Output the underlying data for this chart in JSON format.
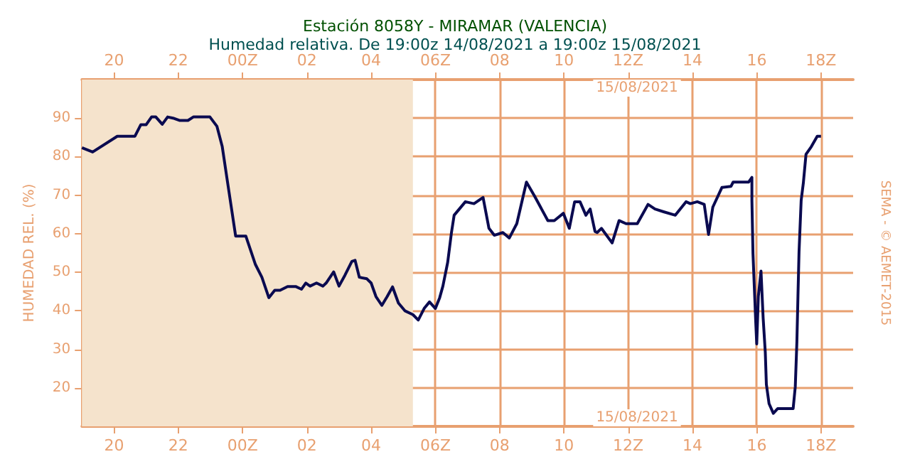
{
  "chart_data": {
    "type": "line",
    "title": "Estación 8058Y - MIRAMAR (VALENCIA)",
    "subtitle": "Humedad relativa. De 19:00z 14/08/2021 a 19:00z 15/08/2021",
    "ylabel": "HUMEDAD REL. (%)",
    "x": [
      "2021-08-14T19:00",
      "2021-08-14T19:20",
      "2021-08-14T20:06",
      "2021-08-14T20:39",
      "2021-08-14T20:50",
      "2021-08-14T21:00",
      "2021-08-14T21:10",
      "2021-08-14T21:18",
      "2021-08-14T21:30",
      "2021-08-14T21:40",
      "2021-08-14T21:50",
      "2021-08-14T22:02",
      "2021-08-14T22:18",
      "2021-08-14T22:28",
      "2021-08-14T22:59",
      "2021-08-14T23:12",
      "2021-08-14T23:22",
      "2021-08-14T23:34",
      "2021-08-14T23:47",
      "2021-08-15T00:06",
      "2021-08-15T00:24",
      "2021-08-15T00:36",
      "2021-08-15T00:49",
      "2021-08-15T01:00",
      "2021-08-15T01:10",
      "2021-08-15T01:24",
      "2021-08-15T01:39",
      "2021-08-15T01:50",
      "2021-08-15T01:58",
      "2021-08-15T02:06",
      "2021-08-15T02:18",
      "2021-08-15T02:30",
      "2021-08-15T02:36",
      "2021-08-15T02:50",
      "2021-08-15T03:00",
      "2021-08-15T03:11",
      "2021-08-15T03:24",
      "2021-08-15T03:30",
      "2021-08-15T03:38",
      "2021-08-15T03:52",
      "2021-08-15T04:00",
      "2021-08-15T04:09",
      "2021-08-15T04:20",
      "2021-08-15T04:30",
      "2021-08-15T04:40",
      "2021-08-15T04:51",
      "2021-08-15T05:03",
      "2021-08-15T05:18",
      "2021-08-15T05:28",
      "2021-08-15T05:39",
      "2021-08-15T05:49",
      "2021-08-15T06:00",
      "2021-08-15T06:08",
      "2021-08-15T06:14",
      "2021-08-15T06:23",
      "2021-08-15T06:30",
      "2021-08-15T06:35",
      "2021-08-15T06:56",
      "2021-08-15T07:12",
      "2021-08-15T07:29",
      "2021-08-15T07:40",
      "2021-08-15T07:50",
      "2021-08-15T08:06",
      "2021-08-15T08:18",
      "2021-08-15T08:32",
      "2021-08-15T08:50",
      "2021-08-15T09:05",
      "2021-08-15T09:30",
      "2021-08-15T09:42",
      "2021-08-15T09:59",
      "2021-08-15T10:10",
      "2021-08-15T10:20",
      "2021-08-15T10:30",
      "2021-08-15T10:41",
      "2021-08-15T10:49",
      "2021-08-15T10:58",
      "2021-08-15T11:02",
      "2021-08-15T11:10",
      "2021-08-15T11:30",
      "2021-08-15T11:43",
      "2021-08-15T11:56",
      "2021-08-15T12:17",
      "2021-08-15T12:37",
      "2021-08-15T12:50",
      "2021-08-15T13:06",
      "2021-08-15T13:28",
      "2021-08-15T13:48",
      "2021-08-15T13:56",
      "2021-08-15T14:09",
      "2021-08-15T14:22",
      "2021-08-15T14:30",
      "2021-08-15T14:38",
      "2021-08-15T14:55",
      "2021-08-15T15:12",
      "2021-08-15T15:16",
      "2021-08-15T15:45",
      "2021-08-15T15:51",
      "2021-08-15T15:51",
      "2021-08-15T15:53",
      "2021-08-15T15:58",
      "2021-08-15T16:00",
      "2021-08-15T16:03",
      "2021-08-15T16:08",
      "2021-08-15T16:12",
      "2021-08-15T16:16",
      "2021-08-15T16:18",
      "2021-08-15T16:23",
      "2021-08-15T16:31",
      "2021-08-15T16:39",
      "2021-08-15T17:08",
      "2021-08-15T17:12",
      "2021-08-15T17:15",
      "2021-08-15T17:17",
      "2021-08-15T17:19",
      "2021-08-15T17:23",
      "2021-08-15T17:27",
      "2021-08-15T17:32",
      "2021-08-15T17:42",
      "2021-08-15T17:53",
      "2021-08-15T18:00"
    ],
    "series": [
      {
        "color": "#0a0a50",
        "values": [
          82.3,
          81.2,
          85.3,
          85.3,
          88.3,
          88.3,
          90.3,
          90.3,
          88.4,
          90.3,
          90,
          89.4,
          89.4,
          90.3,
          90.3,
          87.9,
          82.6,
          71.4,
          59.4,
          59.4,
          52,
          48.7,
          43.4,
          45.3,
          45.3,
          46.3,
          46.3,
          45.6,
          47.2,
          46.4,
          47.2,
          46.4,
          47.2,
          50.1,
          46.4,
          49.2,
          52.8,
          53.1,
          48.7,
          48.3,
          47.2,
          43.7,
          41.4,
          43.7,
          46.2,
          42,
          40,
          39,
          37.6,
          40.6,
          42.3,
          40.6,
          43.4,
          46.4,
          52.6,
          60.3,
          64.8,
          68.3,
          67.8,
          69.4,
          61.4,
          59.6,
          60.3,
          58.9,
          62.6,
          73.4,
          69.8,
          63.4,
          63.4,
          65.3,
          61.4,
          68.3,
          68.3,
          64.8,
          66.4,
          60.6,
          60.3,
          61.4,
          57.6,
          63.4,
          62.6,
          62.6,
          67.6,
          66.4,
          65.7,
          64.8,
          68.3,
          67.8,
          68.3,
          67.6,
          59.8,
          66.9,
          72,
          72.3,
          73.4,
          73.4,
          74.6,
          68.7,
          54.8,
          37.6,
          31.4,
          43.7,
          50.3,
          38.1,
          29.2,
          20.9,
          15.9,
          13.4,
          14.6,
          14.6,
          20.3,
          32,
          43.9,
          55.3,
          68.7,
          73.1,
          80.6,
          82.6,
          85.3,
          85.3
        ]
      }
    ],
    "xlim": [
      "2021-08-14T19:00",
      "2021-08-15T19:00"
    ],
    "xticks": [
      {
        "value": "2021-08-14T20:00",
        "label": "20"
      },
      {
        "value": "2021-08-14T22:00",
        "label": "22"
      },
      {
        "value": "2021-08-15T00:00",
        "label": "00Z"
      },
      {
        "value": "2021-08-15T02:00",
        "label": "02"
      },
      {
        "value": "2021-08-15T04:00",
        "label": "04"
      },
      {
        "value": "2021-08-15T06:00",
        "label": "06Z"
      },
      {
        "value": "2021-08-15T08:00",
        "label": "08"
      },
      {
        "value": "2021-08-15T10:00",
        "label": "10"
      },
      {
        "value": "2021-08-15T12:00",
        "label": "12Z"
      },
      {
        "value": "2021-08-15T14:00",
        "label": "14"
      },
      {
        "value": "2021-08-15T16:00",
        "label": "16"
      },
      {
        "value": "2021-08-15T18:00",
        "label": "18Z"
      }
    ],
    "x2lim": [
      "2021-08-14T19:00",
      "2021-08-15T19:00"
    ],
    "x2ticks": [
      {
        "value": "2021-08-14T20:00",
        "label": "20"
      },
      {
        "value": "2021-08-14T22:00",
        "label": "22"
      },
      {
        "value": "2021-08-15T00:00",
        "label": "00Z"
      },
      {
        "value": "2021-08-15T02:00",
        "label": "02"
      },
      {
        "value": "2021-08-15T04:00",
        "label": "04"
      },
      {
        "value": "2021-08-15T06:00",
        "label": "06Z"
      },
      {
        "value": "2021-08-15T08:00",
        "label": "08"
      },
      {
        "value": "2021-08-15T10:00",
        "label": "10"
      },
      {
        "value": "2021-08-15T12:00",
        "label": "12Z"
      },
      {
        "value": "2021-08-15T14:00",
        "label": "14"
      },
      {
        "value": "2021-08-15T16:00",
        "label": "16"
      },
      {
        "value": "2021-08-15T18:00",
        "label": "18Z"
      }
    ],
    "ylim": [
      10,
      100
    ],
    "yticks": [
      20,
      30,
      40,
      50,
      60,
      70,
      80,
      90
    ],
    "bands": [
      {
        "axis": "x",
        "from": "2021-08-14T19:00",
        "to": "2021-08-15T05:18",
        "color": "#f5e3cc"
      }
    ],
    "annotations": [
      "15/08/2021",
      "15/08/2021",
      "SEMA - © AEMET-2015"
    ],
    "grid": true,
    "marker": "none",
    "line_style": "solid"
  }
}
